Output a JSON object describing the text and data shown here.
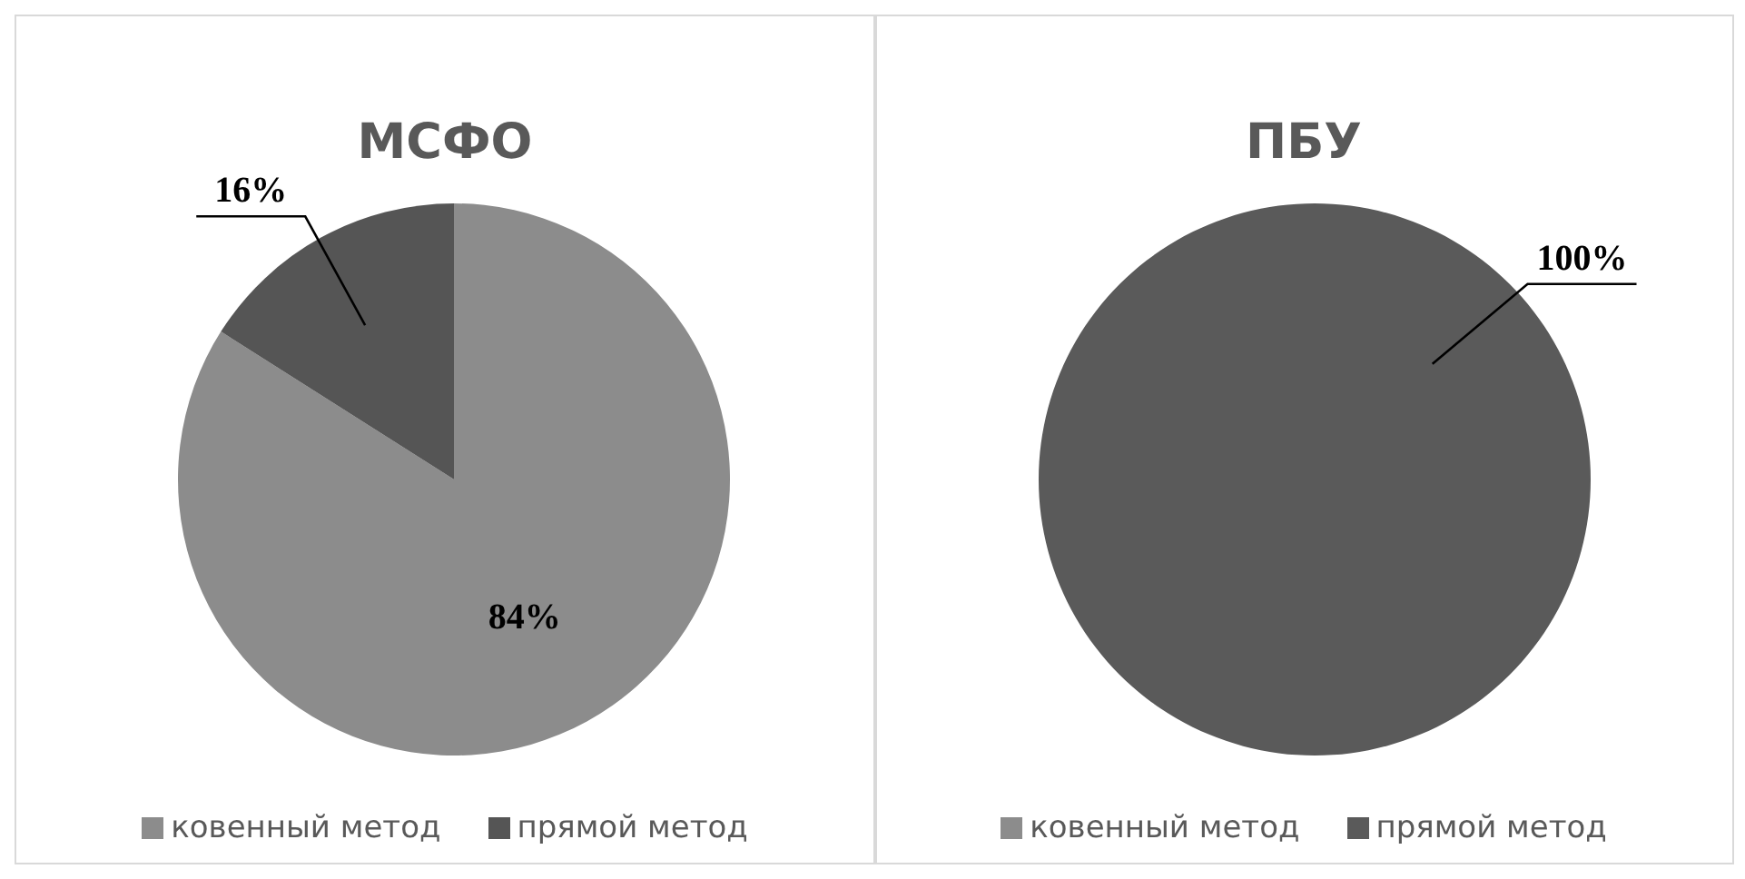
{
  "chart_data": [
    {
      "type": "pie",
      "title": "МСФО",
      "categories": [
        "ковенный метод",
        "прямой метод"
      ],
      "values": [
        84,
        16
      ],
      "colors": [
        "#8c8c8c",
        "#555555"
      ],
      "value_labels": [
        "84%",
        "16%"
      ],
      "legend": "bottom"
    },
    {
      "type": "pie",
      "title": "ПБУ",
      "categories": [
        "ковенный метод",
        "прямой метод"
      ],
      "values": [
        0,
        100
      ],
      "colors": [
        "#8c8c8c",
        "#5a5a5a"
      ],
      "value_labels": [
        null,
        "100%"
      ],
      "legend": "bottom"
    }
  ]
}
